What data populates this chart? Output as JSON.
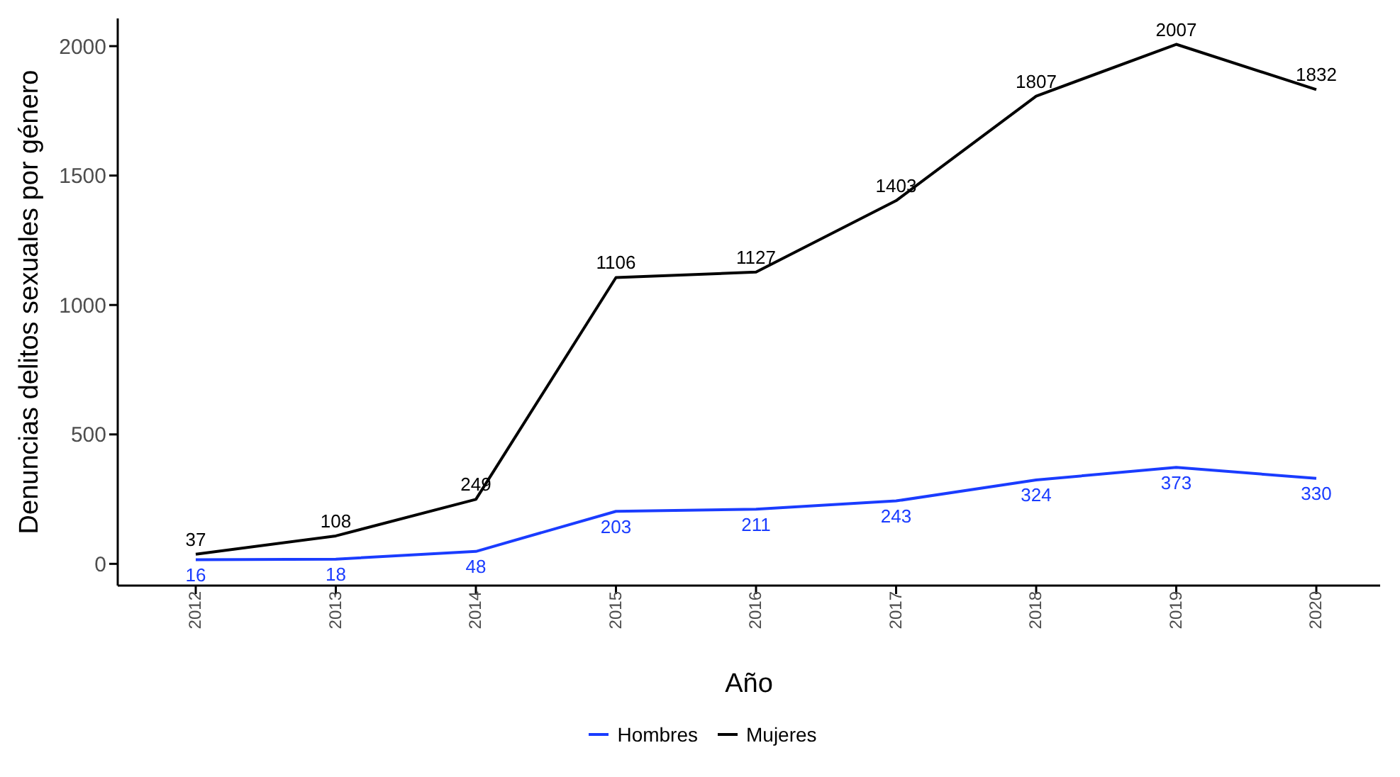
{
  "chart_data": {
    "type": "line",
    "xlabel": "Año",
    "ylabel": "Denuncias delitos sexuales por género",
    "categories": [
      "2012",
      "2013",
      "2014",
      "2015",
      "2016",
      "2017",
      "2018",
      "2019",
      "2020"
    ],
    "series": [
      {
        "name": "Hombres",
        "color": "#1a3cff",
        "values": [
          16,
          18,
          48,
          203,
          211,
          243,
          324,
          373,
          330
        ]
      },
      {
        "name": "Mujeres",
        "color": "#000000",
        "values": [
          37,
          108,
          249,
          1106,
          1127,
          1403,
          1807,
          2007,
          1832
        ]
      }
    ],
    "ylim": [
      -84,
      2107
    ],
    "yticks": [
      0,
      500,
      1000,
      1500,
      2000
    ],
    "grid": false,
    "legend": "bottom",
    "marker": "none",
    "line_style": "solid",
    "data_labels": true
  }
}
